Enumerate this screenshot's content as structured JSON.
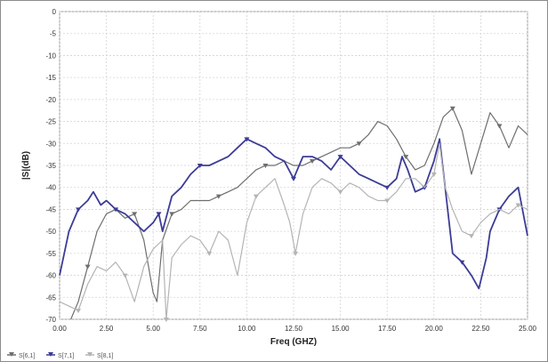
{
  "chart_data": {
    "type": "line",
    "xlabel": "Freq (GHZ)",
    "ylabel": "|S|(dB)",
    "xlim": [
      0,
      25
    ],
    "ylim": [
      -70,
      0
    ],
    "xticks": [
      0,
      2.5,
      5,
      7.5,
      10,
      12.5,
      15,
      17.5,
      20,
      22.5,
      25
    ],
    "xtick_labels": [
      "0.00",
      "2.50",
      "5.00",
      "7.50",
      "10.00",
      "12.50",
      "15.00",
      "17.50",
      "20.00",
      "22.50",
      "25.00"
    ],
    "yticks": [
      0,
      -5,
      -10,
      -15,
      -20,
      -25,
      -30,
      -35,
      -40,
      -45,
      -50,
      -55,
      -60,
      -65,
      -70
    ],
    "ytick_labels": [
      "0",
      "-5",
      "-10",
      "-15",
      "-20",
      "-25",
      "-30",
      "-35",
      "-40",
      "-45",
      "-50",
      "-55",
      "-60",
      "-65",
      "-70"
    ],
    "grid": true,
    "legend_position": "bottom-left",
    "series": [
      {
        "name": "S[6,1]",
        "color": "#6e6e6e",
        "x": [
          0.6,
          1.0,
          1.5,
          2.0,
          2.5,
          3.0,
          3.5,
          4.0,
          4.5,
          5.0,
          5.2,
          5.5,
          6.0,
          6.5,
          7.0,
          7.5,
          8.0,
          8.5,
          9.0,
          9.5,
          10.0,
          10.5,
          11.0,
          11.5,
          12.0,
          12.5,
          13.0,
          13.5,
          14.0,
          14.5,
          15.0,
          15.5,
          16.0,
          16.5,
          17.0,
          17.5,
          18.0,
          18.5,
          19.0,
          19.5,
          20.0,
          20.5,
          21.0,
          21.5,
          22.0,
          22.5,
          23.0,
          23.5,
          24.0,
          24.5,
          25.0
        ],
        "values": [
          -70,
          -66,
          -58,
          -50,
          -46,
          -45,
          -47,
          -46,
          -52,
          -64,
          -66,
          -52,
          -46,
          -45,
          -43,
          -43,
          -43,
          -42,
          -41,
          -40,
          -38,
          -36,
          -35,
          -35,
          -34,
          -35,
          -35,
          -34,
          -33,
          -32,
          -31,
          -31,
          -30,
          -28,
          -25,
          -26,
          -29,
          -33,
          -36,
          -35,
          -30,
          -24,
          -22,
          -27,
          -37,
          -30,
          -23,
          -26,
          -31,
          -26,
          -28
        ]
      },
      {
        "name": "S[7,1]",
        "color": "#3c3c96",
        "x": [
          0.0,
          0.5,
          1.0,
          1.5,
          1.8,
          2.2,
          2.5,
          3.0,
          3.5,
          4.0,
          4.5,
          5.0,
          5.3,
          5.5,
          6.0,
          6.5,
          7.0,
          7.5,
          8.0,
          8.5,
          9.0,
          9.5,
          10.0,
          10.5,
          11.0,
          11.5,
          12.0,
          12.5,
          13.0,
          13.5,
          14.0,
          14.5,
          15.0,
          15.5,
          16.0,
          16.5,
          17.0,
          17.5,
          18.0,
          18.3,
          18.6,
          19.0,
          19.5,
          20.0,
          20.3,
          20.6,
          21.0,
          21.5,
          22.0,
          22.4,
          22.8,
          23.0,
          23.5,
          24.0,
          24.5,
          25.0
        ],
        "values": [
          -60,
          -50,
          -45,
          -43,
          -41,
          -44,
          -43,
          -45,
          -46,
          -48,
          -50,
          -48,
          -46,
          -50,
          -42,
          -40,
          -37,
          -35,
          -35,
          -34,
          -33,
          -31,
          -29,
          -30,
          -31,
          -33,
          -34,
          -38,
          -33,
          -33,
          -34,
          -36,
          -33,
          -35,
          -37,
          -38,
          -39,
          -40,
          -38,
          -33,
          -36,
          -41,
          -40,
          -34,
          -29,
          -40,
          -55,
          -57,
          -60,
          -63,
          -56,
          -50,
          -45,
          -42,
          -40,
          -51
        ]
      },
      {
        "name": "S[8,1]",
        "color": "#b4b4b4",
        "x": [
          0.0,
          0.5,
          1.0,
          1.5,
          2.0,
          2.5,
          3.0,
          3.5,
          4.0,
          4.5,
          5.0,
          5.5,
          5.7,
          6.0,
          6.5,
          7.0,
          7.5,
          8.0,
          8.5,
          9.0,
          9.5,
          10.0,
          10.5,
          11.0,
          11.5,
          12.0,
          12.3,
          12.6,
          13.0,
          13.5,
          14.0,
          14.5,
          15.0,
          15.5,
          16.0,
          16.5,
          17.0,
          17.5,
          18.0,
          18.5,
          19.0,
          19.5,
          20.0,
          20.3,
          20.6,
          21.0,
          21.5,
          22.0,
          22.5,
          23.0,
          23.5,
          24.0,
          24.5,
          25.0
        ],
        "values": [
          -66,
          -67,
          -68,
          -62,
          -58,
          -59,
          -57,
          -60,
          -66,
          -58,
          -54,
          -52,
          -70,
          -56,
          -53,
          -51,
          -52,
          -55,
          -50,
          -52,
          -60,
          -48,
          -42,
          -40,
          -38,
          -44,
          -48,
          -55,
          -46,
          -40,
          -38,
          -39,
          -41,
          -39,
          -40,
          -42,
          -43,
          -43,
          -41,
          -38,
          -38,
          -40,
          -37,
          -30,
          -40,
          -45,
          -50,
          -51,
          -48,
          -46,
          -45,
          -46,
          -44,
          -45
        ]
      }
    ]
  },
  "legend": [
    {
      "label": "S[6,1]",
      "color": "#6e6e6e"
    },
    {
      "label": "S[7,1]",
      "color": "#3c3c96"
    },
    {
      "label": "S[8,1]",
      "color": "#b4b4b4"
    }
  ]
}
